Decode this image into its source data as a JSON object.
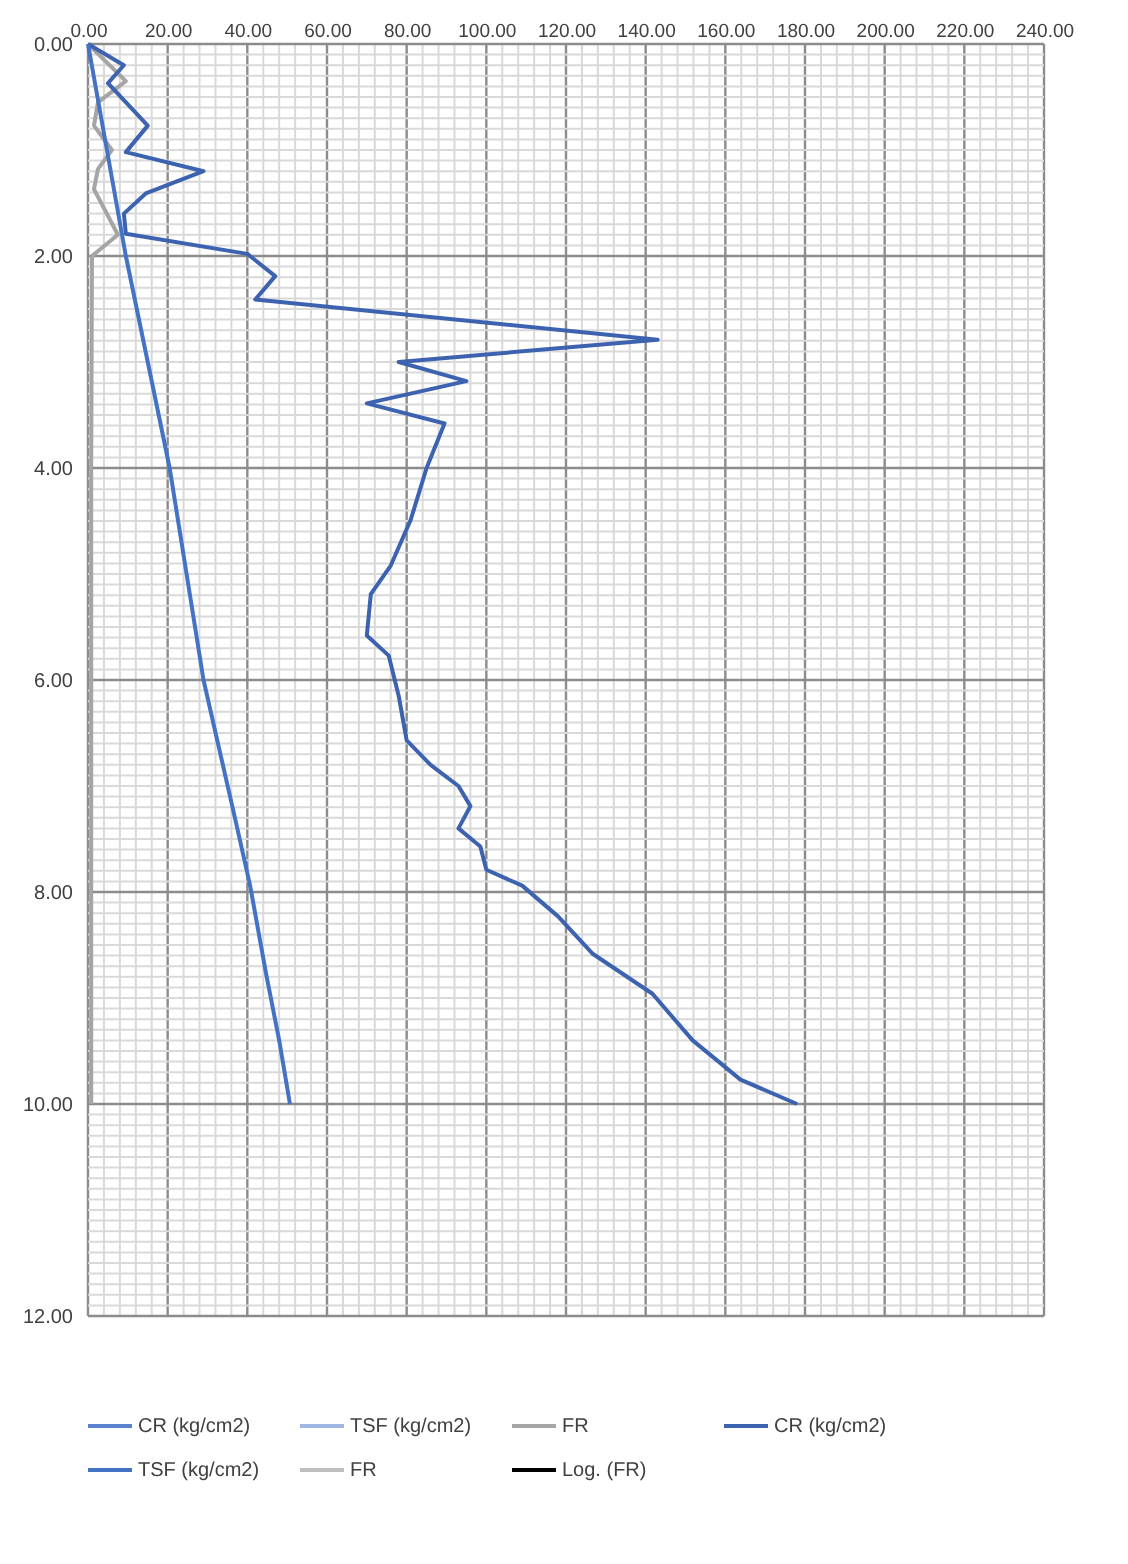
{
  "chart_data": {
    "type": "line",
    "ylim": [
      12,
      0
    ],
    "xlim": [
      0,
      240
    ],
    "xticks": [
      {
        "value": 0,
        "label": "0.00"
      },
      {
        "value": 20,
        "label": "20.00"
      },
      {
        "value": 40,
        "label": "40.00"
      },
      {
        "value": 60,
        "label": "60.00"
      },
      {
        "value": 80,
        "label": "80.00"
      },
      {
        "value": 100,
        "label": "100.00"
      },
      {
        "value": 120,
        "label": "120.00"
      },
      {
        "value": 140,
        "label": "140.00"
      },
      {
        "value": 160,
        "label": "160.00"
      },
      {
        "value": 180,
        "label": "180.00"
      },
      {
        "value": 200,
        "label": "200.00"
      },
      {
        "value": 220,
        "label": "220.00"
      },
      {
        "value": 240,
        "label": "240.00"
      }
    ],
    "yticks": [
      {
        "value": 0,
        "label": "0.00"
      },
      {
        "value": 2,
        "label": "2.00"
      },
      {
        "value": 4,
        "label": "4.00"
      },
      {
        "value": 6,
        "label": "6.00"
      },
      {
        "value": 8,
        "label": "8.00"
      },
      {
        "value": 10,
        "label": "10.00"
      },
      {
        "value": 12,
        "label": "12.00"
      }
    ],
    "grid": true,
    "legend": "bottom",
    "line_style": "solid",
    "marker": "none",
    "series": [
      {
        "name": "CR (kg/cm2)",
        "color": "#5b84d0"
      },
      {
        "name": "TSF (kg/cm2)",
        "color": "#9db6e4"
      },
      {
        "name": "FR",
        "color": "#a5a5a5",
        "x": [
          0,
          9.5,
          2.5,
          1.5,
          6,
          2.5,
          1.5,
          7.5,
          1,
          0.8,
          0.8,
          0.8,
          0.8,
          0.8
        ],
        "values": [
          0,
          0.35,
          0.55,
          0.77,
          1.0,
          1.18,
          1.37,
          1.8,
          2.0,
          4,
          6,
          7.5,
          9,
          10
        ]
      },
      {
        "name": "CR (kg/cm2)",
        "color": "#3d63b0",
        "x": [
          0,
          9,
          5,
          15,
          9.5,
          29,
          14.5,
          9,
          9.5,
          40,
          47,
          42,
          143,
          78,
          95,
          70,
          89.5,
          85,
          81,
          76,
          71,
          70,
          75.5,
          78,
          80,
          86,
          93,
          96,
          93,
          98.5,
          100,
          109,
          118,
          126.6,
          141.7,
          151.8,
          163.8,
          178
        ],
        "values": [
          0,
          0.2,
          0.37,
          0.77,
          1.02,
          1.2,
          1.41,
          1.6,
          1.79,
          1.98,
          2.19,
          2.41,
          2.79,
          3.0,
          3.18,
          3.39,
          3.58,
          4.0,
          4.49,
          4.92,
          5.19,
          5.58,
          5.77,
          6.15,
          6.57,
          6.8,
          7.0,
          7.19,
          7.4,
          7.57,
          7.79,
          7.94,
          8.23,
          8.58,
          8.96,
          9.4,
          9.77,
          10.0
        ]
      },
      {
        "name": "TSF (kg/cm2)",
        "color": "#4472c4",
        "x": [
          0,
          9.5,
          20.5,
          29,
          37,
          40.7,
          44.7,
          48,
          50.7
        ],
        "values": [
          0,
          2,
          4,
          6,
          7.32,
          7.94,
          8.77,
          9.4,
          10.0
        ]
      },
      {
        "name": "FR",
        "color": "#bfbfbf"
      },
      {
        "name": "Log. (FR)",
        "color": "#000000"
      }
    ]
  }
}
